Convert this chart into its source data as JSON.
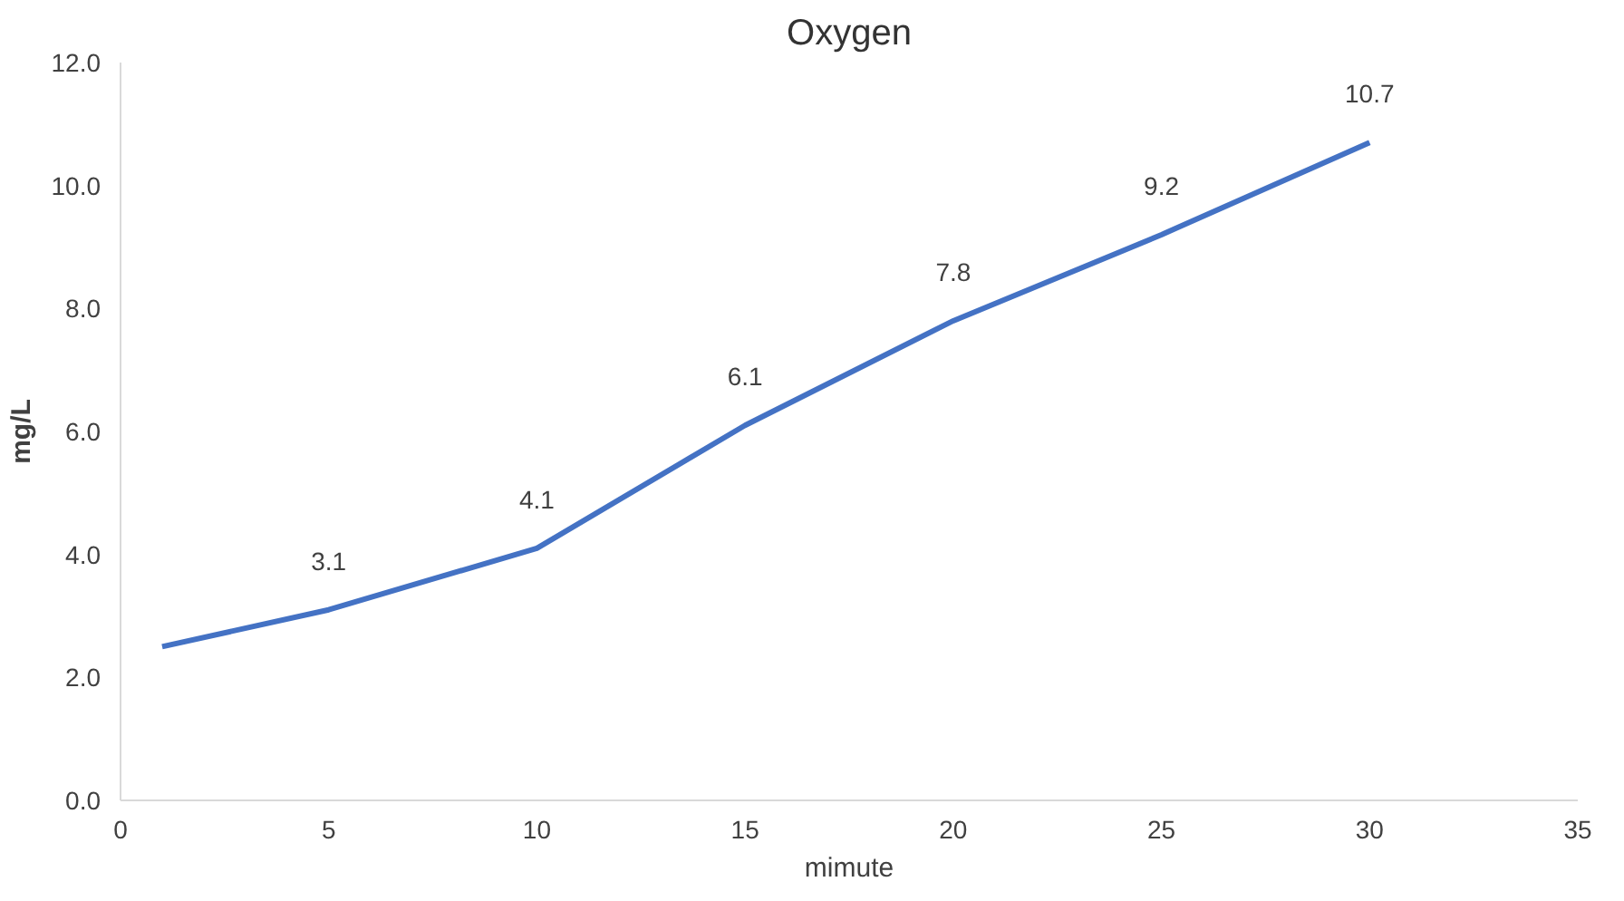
{
  "chart_data": {
    "type": "line",
    "title": "Oxygen",
    "xlabel": "mimute",
    "ylabel": "mg/L",
    "x": [
      1,
      5,
      10,
      15,
      20,
      25,
      30
    ],
    "values": [
      2.5,
      3.1,
      4.1,
      6.1,
      7.8,
      9.2,
      10.7
    ],
    "value_labels": [
      null,
      "3.1",
      "4.1",
      "6.1",
      "7.8",
      "9.2",
      "10.7"
    ],
    "color": "#4472c4",
    "xlim": [
      0,
      35
    ],
    "xticks": [
      0,
      5,
      10,
      15,
      20,
      25,
      30,
      35
    ],
    "ylim": [
      0,
      12
    ],
    "yticks": [
      {
        "value": 0,
        "label": "0.0"
      },
      {
        "value": 2,
        "label": "2.0"
      },
      {
        "value": 4,
        "label": "4.0"
      },
      {
        "value": 6,
        "label": "6.0"
      },
      {
        "value": 8,
        "label": "8.0"
      },
      {
        "value": 10,
        "label": "10.0"
      },
      {
        "value": 12,
        "label": "12.0"
      }
    ]
  }
}
